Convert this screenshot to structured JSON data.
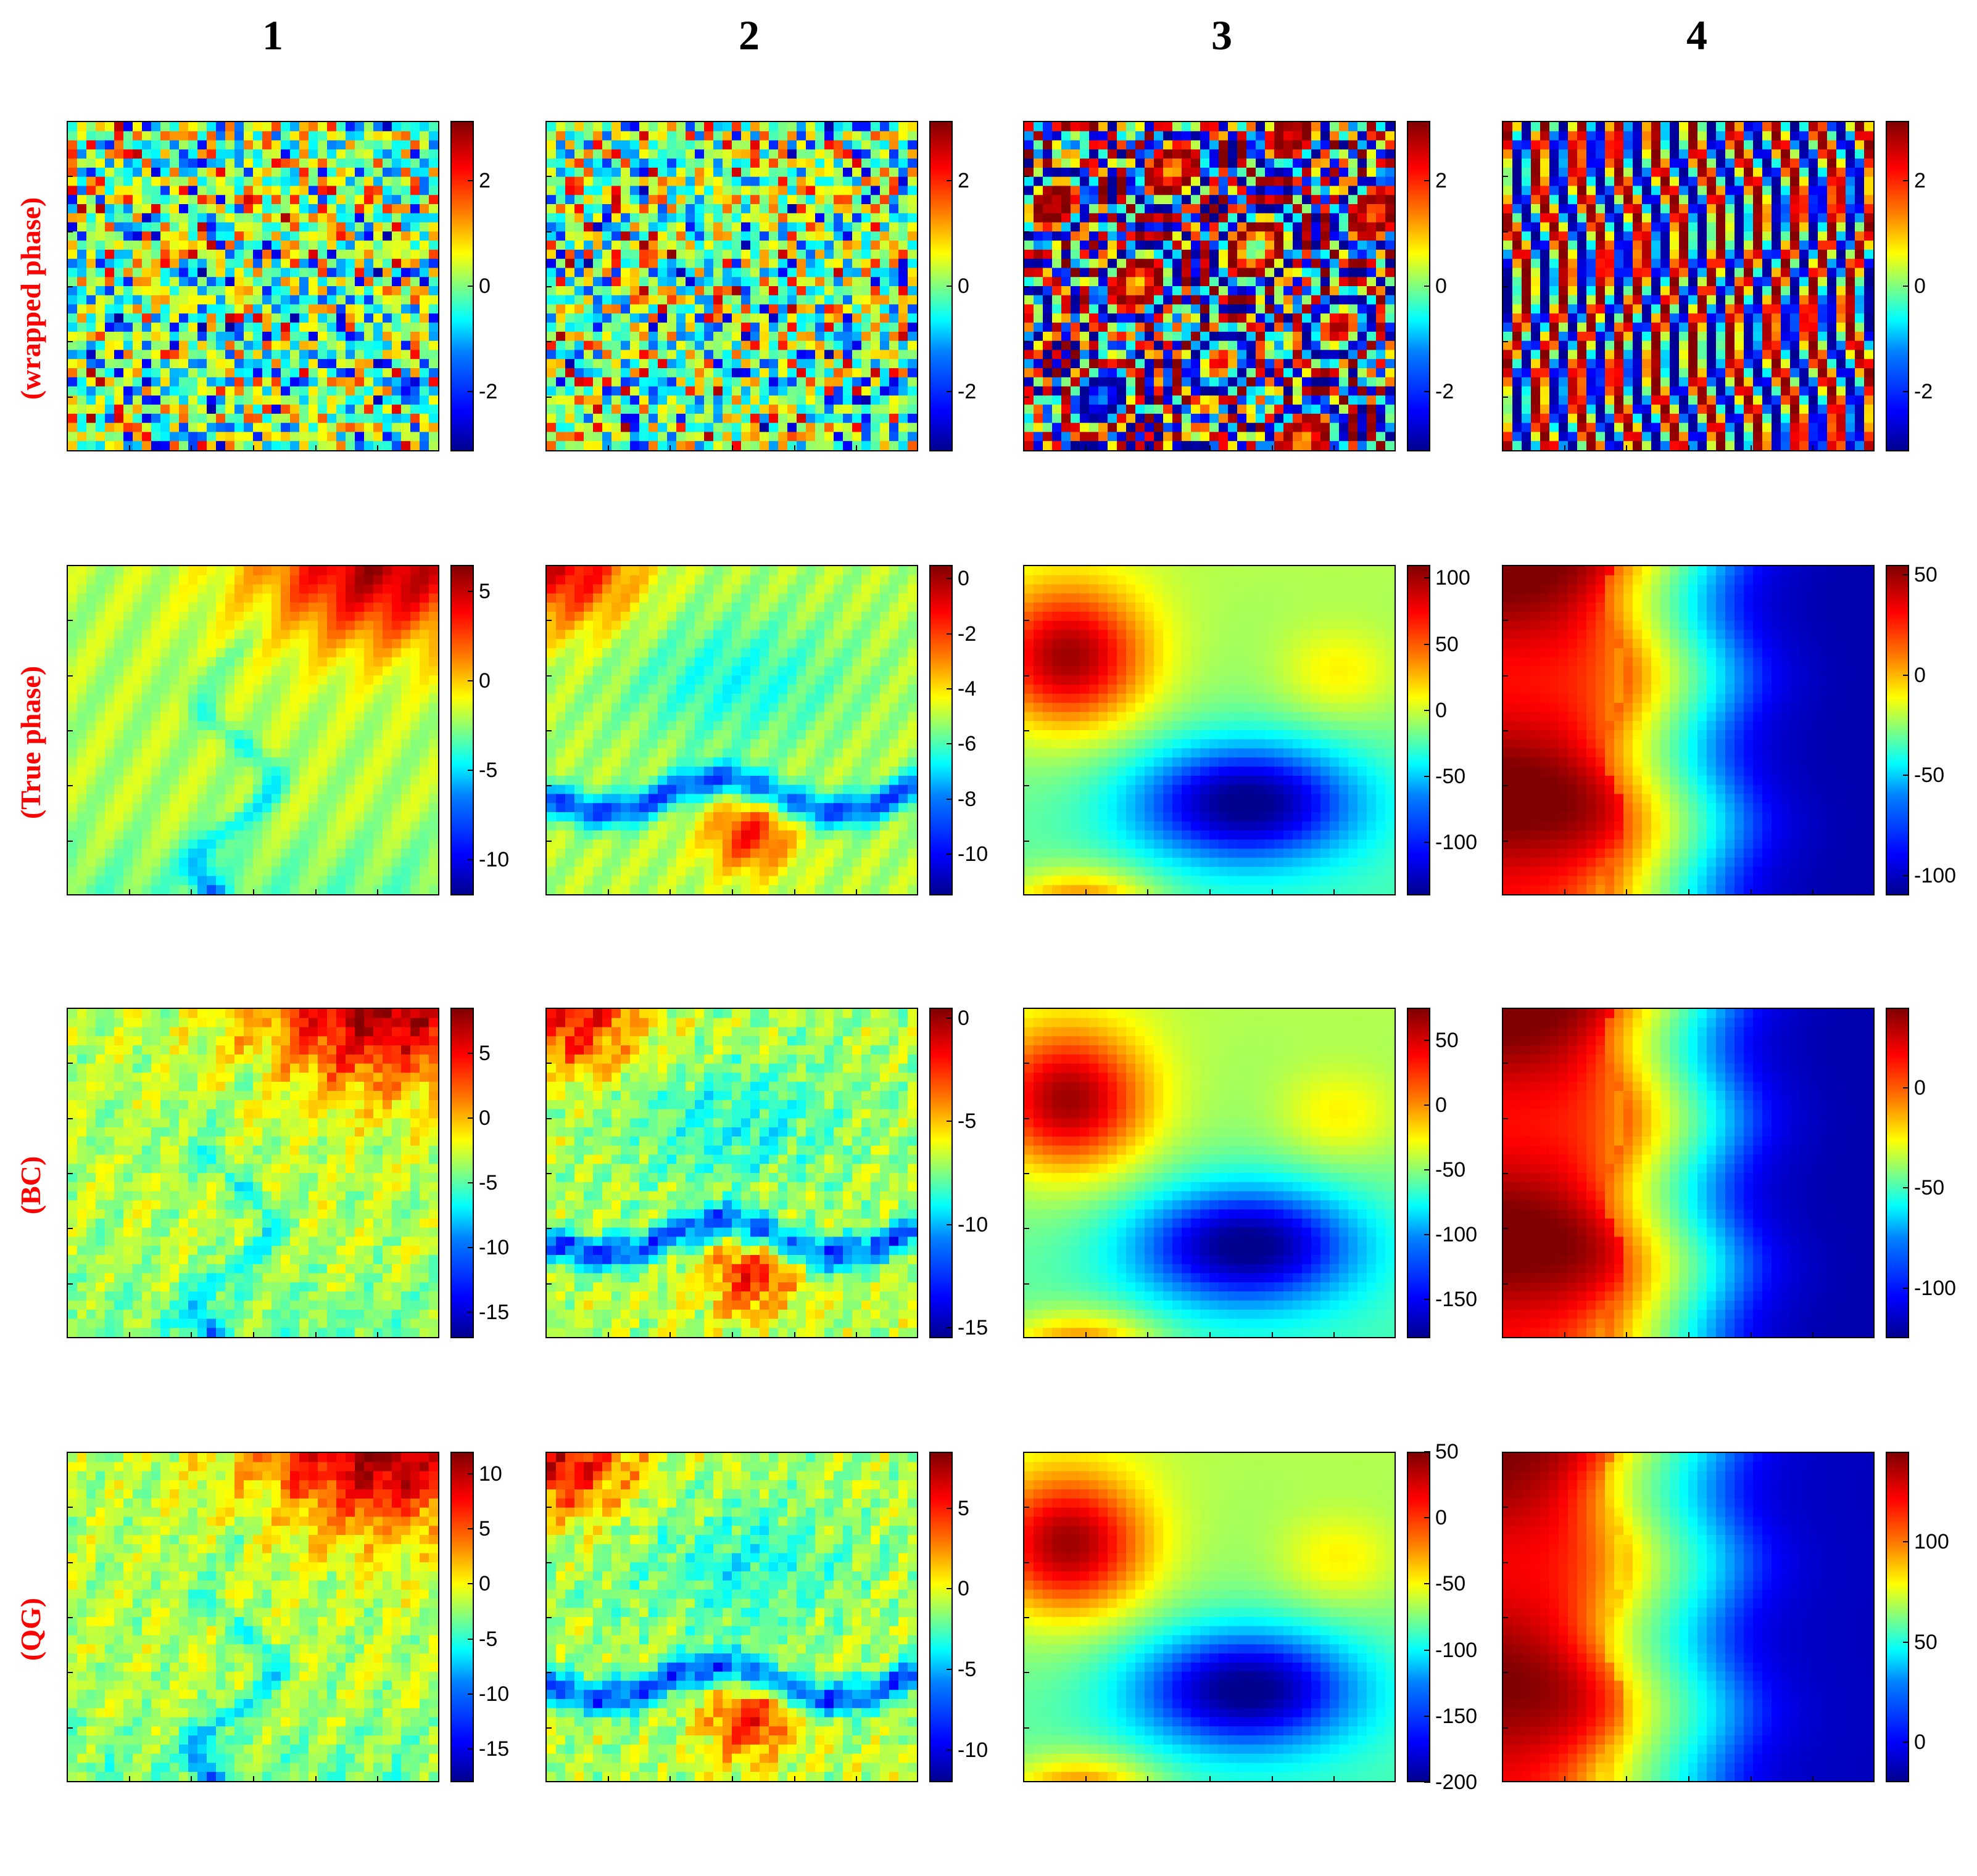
{
  "columns": [
    "1",
    "2",
    "3",
    "4"
  ],
  "rows": [
    "(wrapped phase)",
    "(True phase)",
    "(BC)",
    "(QG)"
  ],
  "colormap": [
    "#00008f",
    "#0000ff",
    "#0080ff",
    "#00ffff",
    "#80ff80",
    "#ffff00",
    "#ff8000",
    "#ff0000",
    "#800000"
  ],
  "chart_data": [
    {
      "type": "heatmap",
      "row": "(wrapped phase)",
      "column": "1",
      "colorbar": {
        "min": -3.14,
        "max": 3.14,
        "ticks": [
          "2",
          "0",
          "-2"
        ],
        "tick_values": [
          2,
          0,
          -2
        ]
      },
      "pattern": "wrapped-terrain"
    },
    {
      "type": "heatmap",
      "row": "(wrapped phase)",
      "column": "2",
      "colorbar": {
        "min": -3.14,
        "max": 3.14,
        "ticks": [
          "2",
          "0",
          "-2"
        ],
        "tick_values": [
          2,
          0,
          -2
        ]
      },
      "pattern": "wrapped-terrain"
    },
    {
      "type": "heatmap",
      "row": "(wrapped phase)",
      "column": "3",
      "colorbar": {
        "min": -3.14,
        "max": 3.14,
        "ticks": [
          "2",
          "0",
          "-2"
        ],
        "tick_values": [
          2,
          0,
          -2
        ]
      },
      "pattern": "wrapped-fringes"
    },
    {
      "type": "heatmap",
      "row": "(wrapped phase)",
      "column": "4",
      "colorbar": {
        "min": -3.14,
        "max": 3.14,
        "ticks": [
          "2",
          "0",
          "-2"
        ],
        "tick_values": [
          2,
          0,
          -2
        ]
      },
      "pattern": "wrapped-vertical-fringes"
    },
    {
      "type": "heatmap",
      "row": "(True phase)",
      "column": "1",
      "colorbar": {
        "min": -12,
        "max": 6.5,
        "ticks": [
          "5",
          "0",
          "-5",
          "-10"
        ],
        "tick_values": [
          5,
          0,
          -5,
          -10
        ]
      },
      "pattern": "terrain-a"
    },
    {
      "type": "heatmap",
      "row": "(True phase)",
      "column": "2",
      "colorbar": {
        "min": -11.5,
        "max": 0.5,
        "ticks": [
          "0",
          "-2",
          "-4",
          "-6",
          "-8",
          "-10"
        ],
        "tick_values": [
          0,
          -2,
          -4,
          -6,
          -8,
          -10
        ]
      },
      "pattern": "terrain-b"
    },
    {
      "type": "heatmap",
      "row": "(True phase)",
      "column": "3",
      "colorbar": {
        "min": -140,
        "max": 110,
        "ticks": [
          "100",
          "50",
          "0",
          "-50",
          "-100"
        ],
        "tick_values": [
          100,
          50,
          0,
          -50,
          -100
        ]
      },
      "pattern": "smooth-blobs"
    },
    {
      "type": "heatmap",
      "row": "(True phase)",
      "column": "4",
      "colorbar": {
        "min": -110,
        "max": 55,
        "ticks": [
          "50",
          "0",
          "-50",
          "-100"
        ],
        "tick_values": [
          50,
          0,
          -50,
          -100
        ]
      },
      "pattern": "vertical-bands"
    },
    {
      "type": "heatmap",
      "row": "(BC)",
      "column": "1",
      "colorbar": {
        "min": -17,
        "max": 8.5,
        "ticks": [
          "5",
          "0",
          "-5",
          "-10",
          "-15"
        ],
        "tick_values": [
          5,
          0,
          -5,
          -10,
          -15
        ]
      },
      "pattern": "terrain-a-noisy"
    },
    {
      "type": "heatmap",
      "row": "(BC)",
      "column": "2",
      "colorbar": {
        "min": -15.5,
        "max": 0.5,
        "ticks": [
          "0",
          "-5",
          "-10",
          "-15"
        ],
        "tick_values": [
          0,
          -5,
          -10,
          -15
        ]
      },
      "pattern": "terrain-b-noisy"
    },
    {
      "type": "heatmap",
      "row": "(BC)",
      "column": "3",
      "colorbar": {
        "min": -180,
        "max": 75,
        "ticks": [
          "50",
          "0",
          "-50",
          "-100",
          "-150"
        ],
        "tick_values": [
          50,
          0,
          -50,
          -100,
          -150
        ]
      },
      "pattern": "smooth-blobs"
    },
    {
      "type": "heatmap",
      "row": "(BC)",
      "column": "4",
      "colorbar": {
        "min": -125,
        "max": 40,
        "ticks": [
          "0",
          "-50",
          "-100"
        ],
        "tick_values": [
          0,
          -50,
          -100
        ]
      },
      "pattern": "vertical-bands"
    },
    {
      "type": "heatmap",
      "row": "(QG)",
      "column": "1",
      "colorbar": {
        "min": -18,
        "max": 12,
        "ticks": [
          "10",
          "5",
          "0",
          "-5",
          "-10",
          "-15"
        ],
        "tick_values": [
          10,
          5,
          0,
          -5,
          -10,
          -15
        ]
      },
      "pattern": "terrain-a-noisy"
    },
    {
      "type": "heatmap",
      "row": "(QG)",
      "column": "2",
      "colorbar": {
        "min": -12,
        "max": 8.5,
        "ticks": [
          "5",
          "0",
          "-5",
          "-10"
        ],
        "tick_values": [
          5,
          0,
          -5,
          -10
        ]
      },
      "pattern": "terrain-b-noisy"
    },
    {
      "type": "heatmap",
      "row": "(QG)",
      "column": "3",
      "colorbar": {
        "min": -200,
        "max": 50,
        "ticks": [
          "50",
          "0",
          "-50",
          "-100",
          "-150",
          "-200"
        ],
        "tick_values": [
          50,
          0,
          -50,
          -100,
          -150,
          -200
        ]
      },
      "pattern": "smooth-blobs"
    },
    {
      "type": "heatmap",
      "row": "(QG)",
      "column": "4",
      "colorbar": {
        "min": -20,
        "max": 145,
        "ticks": [
          "100",
          "50",
          "0"
        ],
        "tick_values": [
          100,
          50,
          0
        ]
      },
      "pattern": "vertical-bands-inverted"
    }
  ]
}
